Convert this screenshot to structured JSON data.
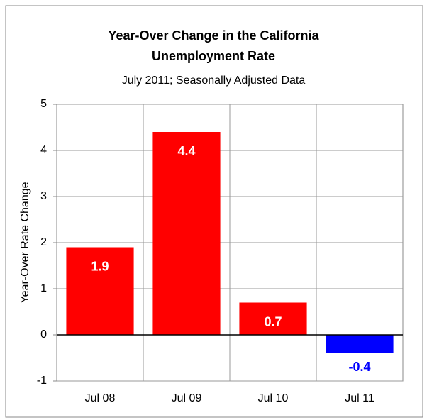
{
  "chart_data": {
    "type": "bar",
    "title": "Year-Over Change in the California Unemployment Rate",
    "subtitle": "July 2011; Seasonally Adjusted Data",
    "y_label": "Year-Over Rate Change",
    "categories": [
      "Jul 08",
      "Jul 09",
      "Jul 10",
      "Jul 11"
    ],
    "values": [
      1.9,
      4.4,
      0.7,
      -0.4
    ],
    "colors": [
      "#ff0000",
      "#ff0000",
      "#ff0000",
      "#0000ff"
    ],
    "ylim": [
      -1,
      5
    ],
    "yticks": [
      -1,
      0,
      1,
      2,
      3,
      4,
      5
    ],
    "grid": true
  }
}
